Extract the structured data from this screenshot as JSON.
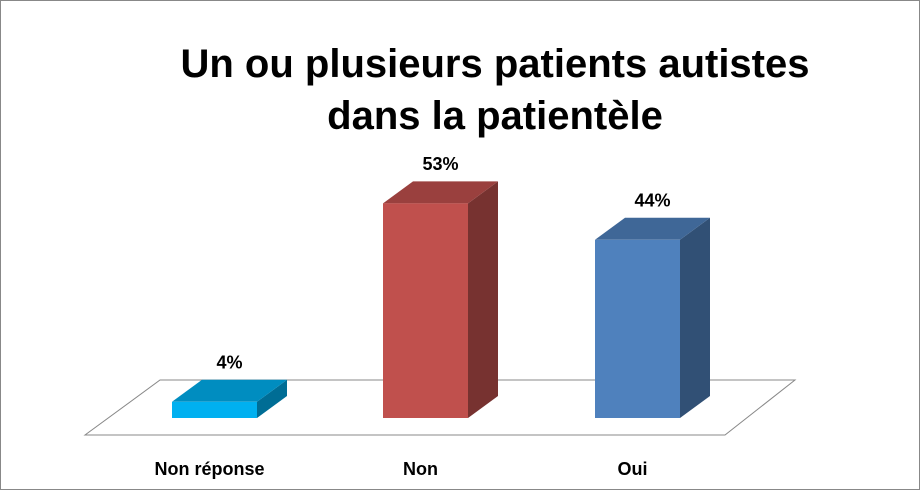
{
  "chart_data": {
    "type": "bar3d",
    "title": "Un ou plusieurs patients autistes dans la patientèle",
    "categories": [
      "Non réponse",
      "Non",
      "Oui"
    ],
    "values": [
      4,
      53,
      44
    ],
    "value_labels": [
      "4%",
      "53%",
      "44%"
    ],
    "colors": [
      "#00b0f0",
      "#c0504d",
      "#4f81bd"
    ]
  }
}
